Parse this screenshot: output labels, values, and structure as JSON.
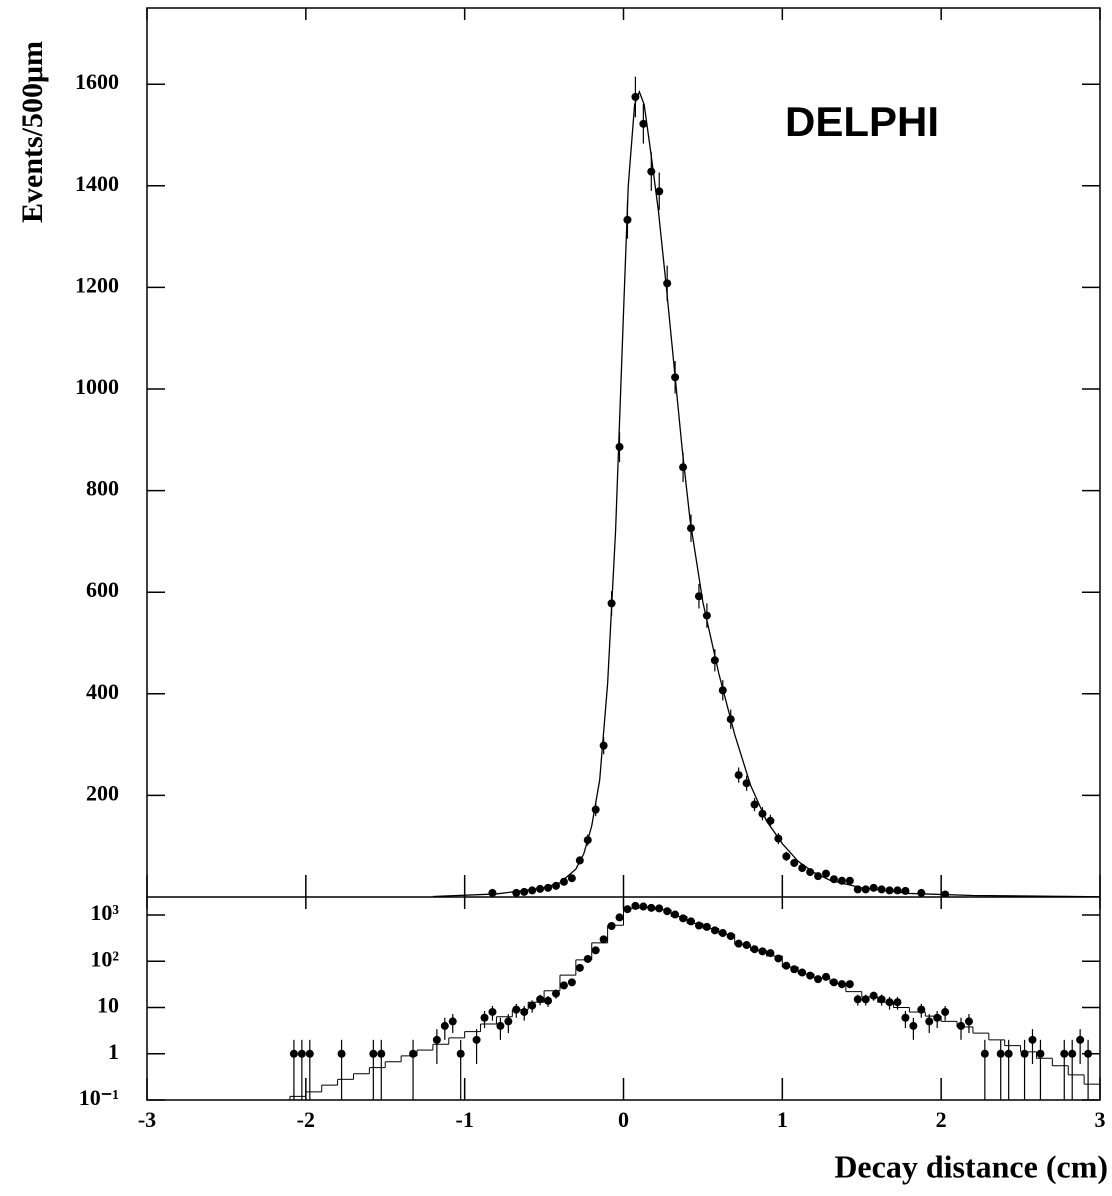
{
  "chart_data": [
    {
      "type": "scatter",
      "ylabel": "Events/500μm",
      "annotation": "DELPHI",
      "xlim": [
        -3,
        3
      ],
      "ylim": [
        0,
        1750
      ],
      "yticks": [
        200,
        400,
        600,
        800,
        1000,
        1200,
        1400,
        1600
      ],
      "series": [
        {
          "style": "points",
          "color": "#000000",
          "x": [
            -0.825,
            -0.675,
            -0.625,
            -0.575,
            -0.525,
            -0.475,
            -0.425,
            -0.375,
            -0.325,
            -0.275,
            -0.225,
            -0.175,
            -0.125,
            -0.075,
            -0.025,
            0.025,
            0.075,
            0.125,
            0.175,
            0.225,
            0.275,
            0.325,
            0.375,
            0.425,
            0.475,
            0.525,
            0.575,
            0.625,
            0.675,
            0.725,
            0.775,
            0.825,
            0.875,
            0.925,
            0.975,
            1.025,
            1.075,
            1.125,
            1.175,
            1.225,
            1.275,
            1.325,
            1.375,
            1.425,
            1.475,
            1.525,
            1.575,
            1.625,
            1.675,
            1.725,
            1.775,
            1.875,
            2.025
          ],
          "values": [
            8,
            8,
            10,
            13,
            16,
            18,
            22,
            30,
            37,
            72,
            112,
            172,
            298,
            578,
            886,
            1333,
            1575,
            1522,
            1428,
            1389,
            1208,
            1023,
            846,
            726,
            592,
            554,
            466,
            407,
            350,
            240,
            224,
            182,
            164,
            150,
            115,
            80,
            67,
            57,
            49,
            41,
            46,
            35,
            32,
            32,
            15,
            15,
            18,
            15,
            13,
            13,
            12,
            8,
            5
          ],
          "errors": [
            3,
            3,
            3,
            4,
            4,
            4,
            5,
            5,
            6,
            8,
            11,
            13,
            17,
            24,
            30,
            37,
            40,
            39,
            38,
            37,
            35,
            32,
            29,
            27,
            24,
            24,
            22,
            20,
            19,
            15,
            15,
            13,
            13,
            12,
            11,
            9,
            8,
            8,
            7,
            6,
            7,
            6,
            6,
            6,
            4,
            4,
            4,
            4,
            4,
            4,
            3,
            3,
            2
          ]
        },
        {
          "style": "line",
          "color": "#000000",
          "x": [
            -1.2,
            -0.8,
            -0.5,
            -0.4,
            -0.3,
            -0.25,
            -0.2,
            -0.15,
            -0.1,
            -0.05,
            0,
            0.03,
            0.07,
            0.1,
            0.13,
            0.17,
            0.22,
            0.27,
            0.32,
            0.37,
            0.42,
            0.5,
            0.6,
            0.7,
            0.8,
            0.9,
            1.0,
            1.1,
            1.2,
            1.3,
            1.5,
            1.8,
            2.2,
            3
          ],
          "values": [
            1,
            6,
            18,
            28,
            55,
            85,
            140,
            230,
            420,
            720,
            1150,
            1400,
            1560,
            1585,
            1560,
            1470,
            1350,
            1200,
            1040,
            880,
            740,
            580,
            440,
            320,
            220,
            150,
            105,
            70,
            48,
            33,
            18,
            7,
            3,
            0.5
          ]
        }
      ]
    },
    {
      "type": "scatter",
      "xlabel": "Decay distance (cm)",
      "log_y": true,
      "xlim": [
        -3,
        3
      ],
      "xticks": [
        -3,
        -2,
        -1,
        0,
        1,
        2,
        3
      ],
      "ylim": [
        0.1,
        2450
      ],
      "yticks": [
        {
          "value": 0.1,
          "label": "10⁻¹"
        },
        1,
        10,
        {
          "value": 100,
          "label": "10²"
        },
        {
          "value": 1000,
          "label": "10³"
        }
      ],
      "series": [
        {
          "style": "points",
          "color": "#000000",
          "x": [
            -2.075,
            -2.025,
            -1.975,
            -1.775,
            -1.575,
            -1.525,
            -1.325,
            -1.175,
            -1.125,
            -1.075,
            -1.025,
            -0.925,
            -0.875,
            -0.825,
            -0.775,
            -0.725,
            -0.675,
            -0.625,
            -0.575,
            -0.525,
            -0.475,
            -0.425,
            -0.375,
            -0.325,
            -0.275,
            -0.225,
            -0.175,
            -0.125,
            -0.075,
            -0.025,
            0.025,
            0.075,
            0.125,
            0.175,
            0.225,
            0.275,
            0.325,
            0.375,
            0.425,
            0.475,
            0.525,
            0.575,
            0.625,
            0.675,
            0.725,
            0.775,
            0.825,
            0.875,
            0.925,
            0.975,
            1.025,
            1.075,
            1.125,
            1.175,
            1.225,
            1.275,
            1.325,
            1.375,
            1.425,
            1.475,
            1.525,
            1.575,
            1.625,
            1.675,
            1.725,
            1.775,
            1.825,
            1.875,
            1.925,
            1.975,
            2.025,
            2.125,
            2.175,
            2.275,
            2.375,
            2.425,
            2.525,
            2.575,
            2.625,
            2.775,
            2.825,
            2.875,
            2.925
          ],
          "values": [
            1,
            1,
            1,
            1,
            1,
            1,
            1,
            2,
            4,
            5,
            1,
            2,
            6,
            8,
            4,
            5,
            9,
            8,
            11,
            15,
            14,
            20,
            30,
            35,
            72,
            112,
            172,
            298,
            578,
            886,
            1333,
            1575,
            1522,
            1428,
            1389,
            1208,
            1023,
            846,
            726,
            592,
            554,
            466,
            407,
            350,
            240,
            224,
            182,
            164,
            150,
            115,
            80,
            67,
            57,
            49,
            41,
            46,
            35,
            32,
            32,
            15,
            15,
            18,
            15,
            13,
            13,
            6,
            4,
            9,
            5,
            6,
            8,
            4,
            5,
            1,
            1,
            1,
            1,
            2,
            1,
            1,
            1,
            2,
            1
          ],
          "errors": [
            1,
            1,
            1,
            1,
            1,
            1,
            1,
            1.4,
            2,
            2.2,
            1,
            1.4,
            2.4,
            2.8,
            2,
            2.2,
            3,
            2.8,
            3.3,
            3.9,
            3.7,
            4.5,
            5.5,
            5.9,
            8,
            11,
            13,
            17,
            24,
            30,
            37,
            40,
            39,
            38,
            37,
            35,
            32,
            29,
            27,
            24,
            24,
            22,
            20,
            19,
            15,
            15,
            13,
            13,
            12,
            11,
            9,
            8,
            8,
            7,
            6,
            7,
            6,
            6,
            6,
            4,
            4,
            4,
            4,
            4,
            4,
            2.4,
            2,
            3,
            2.2,
            2.4,
            2.8,
            2,
            2.2,
            1,
            1,
            1,
            1,
            1.4,
            1,
            1,
            1,
            1.4,
            1
          ]
        },
        {
          "style": "step",
          "color": "#000000",
          "bins": [
            -2.1,
            -2.0,
            -1.9,
            -1.8,
            -1.7,
            -1.6,
            -1.5,
            -1.4,
            -1.3,
            -1.2,
            -1.1,
            -1.0,
            -0.9,
            -0.8,
            -0.7,
            -0.6,
            -0.5,
            -0.4,
            -0.3,
            -0.2,
            -0.1,
            0,
            0.1,
            0.2,
            0.3,
            0.4,
            0.5,
            0.6,
            0.7,
            0.8,
            0.9,
            1.0,
            1.1,
            1.2,
            1.3,
            1.4,
            1.5,
            1.6,
            1.7,
            1.8,
            1.9,
            2.0,
            2.1,
            2.2,
            2.3,
            2.4,
            2.5,
            2.6,
            2.7,
            2.8,
            2.9,
            3.0
          ],
          "values": [
            0.12,
            0.15,
            0.21,
            0.28,
            0.37,
            0.5,
            0.67,
            0.9,
            1.2,
            1.6,
            2.2,
            3,
            4.4,
            6.3,
            9,
            13,
            23,
            50,
            107,
            250,
            600,
            1400,
            1450,
            1300,
            930,
            660,
            510,
            380,
            230,
            170,
            130,
            75,
            53,
            43,
            33,
            22,
            17,
            13,
            10,
            8,
            6.5,
            5,
            3.8,
            2.8,
            2,
            1.5,
            1.1,
            0.8,
            0.55,
            0.35,
            0.22
          ]
        }
      ]
    }
  ]
}
